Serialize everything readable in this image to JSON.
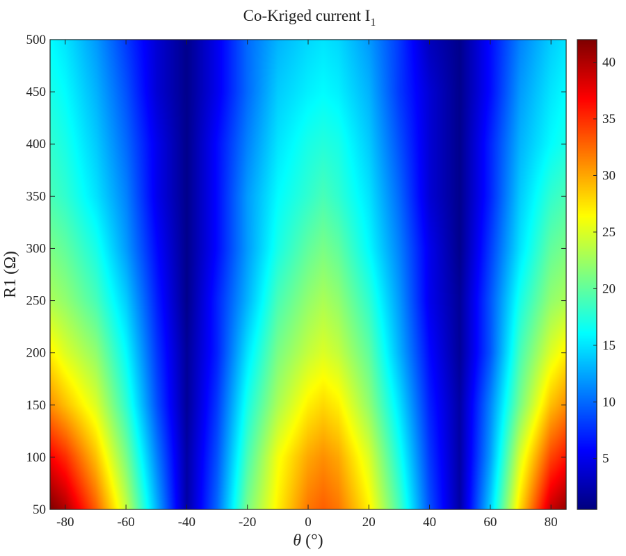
{
  "chart_data": {
    "type": "heatmap",
    "title": "Co-Kriged current I",
    "title_subscript": "1",
    "xlabel_symbol": "θ",
    "xlabel_unit": "(°)",
    "ylabel": "R1 (Ω)",
    "xlim": [
      -85,
      85
    ],
    "ylim": [
      50,
      500
    ],
    "x_ticks": [
      -80,
      -60,
      -40,
      -20,
      0,
      20,
      40,
      60,
      80
    ],
    "y_ticks": [
      50,
      100,
      150,
      200,
      250,
      300,
      350,
      400,
      450,
      500
    ],
    "colorbar": {
      "colormap": "jet",
      "min": 0.5,
      "max": 42,
      "ticks": [
        5,
        10,
        15,
        20,
        25,
        30,
        35,
        40
      ]
    },
    "x": [
      -85,
      -80,
      -70,
      -60,
      -50,
      -40,
      -30,
      -20,
      -10,
      0,
      5,
      10,
      20,
      30,
      40,
      50,
      60,
      70,
      80,
      85
    ],
    "y": [
      50,
      100,
      150,
      200,
      250,
      300,
      350,
      400,
      450,
      500
    ],
    "z": [
      [
        42,
        40,
        33,
        24,
        13,
        2,
        10,
        21,
        27,
        32,
        33,
        32,
        27,
        19,
        9,
        2,
        14,
        28,
        39,
        41
      ],
      [
        37,
        35,
        29,
        21,
        11,
        2,
        9,
        19,
        26,
        30,
        31,
        30,
        25,
        17,
        8,
        2,
        12,
        25,
        34,
        36
      ],
      [
        31,
        29,
        25,
        18,
        9,
        1.5,
        8,
        17,
        23,
        27,
        28,
        27,
        22,
        15,
        7,
        2,
        11,
        21,
        29,
        31
      ],
      [
        27,
        25,
        22,
        16,
        8,
        1.5,
        7,
        15,
        21,
        24,
        25,
        24,
        20,
        13,
        6,
        1.5,
        9,
        19,
        25,
        27
      ],
      [
        23,
        22,
        19,
        14,
        7,
        1,
        7,
        13,
        19,
        22,
        23,
        22,
        18,
        12,
        5,
        1.5,
        9,
        17,
        22,
        23
      ],
      [
        21,
        20,
        17,
        12,
        6,
        1,
        6,
        12,
        17,
        20,
        21,
        20,
        16,
        11,
        5,
        1,
        8,
        15,
        20,
        21
      ],
      [
        19,
        18,
        15,
        11,
        5,
        1,
        6,
        12,
        16,
        18,
        19,
        18,
        15,
        10,
        4,
        1,
        7,
        14,
        18,
        19
      ],
      [
        18,
        17,
        14,
        10,
        5,
        1,
        6,
        11,
        15,
        17,
        17.5,
        17,
        14,
        9,
        4,
        1,
        7,
        13,
        16,
        17
      ],
      [
        17,
        16,
        13,
        9,
        4,
        1,
        5,
        10,
        14,
        15.5,
        16,
        15.5,
        13,
        8,
        4,
        1,
        6,
        12,
        15,
        16
      ],
      [
        16,
        15,
        12,
        8,
        4,
        1,
        5,
        10,
        13,
        14.5,
        15,
        14.5,
        12,
        8,
        3,
        1,
        6,
        11,
        14,
        15
      ]
    ]
  }
}
